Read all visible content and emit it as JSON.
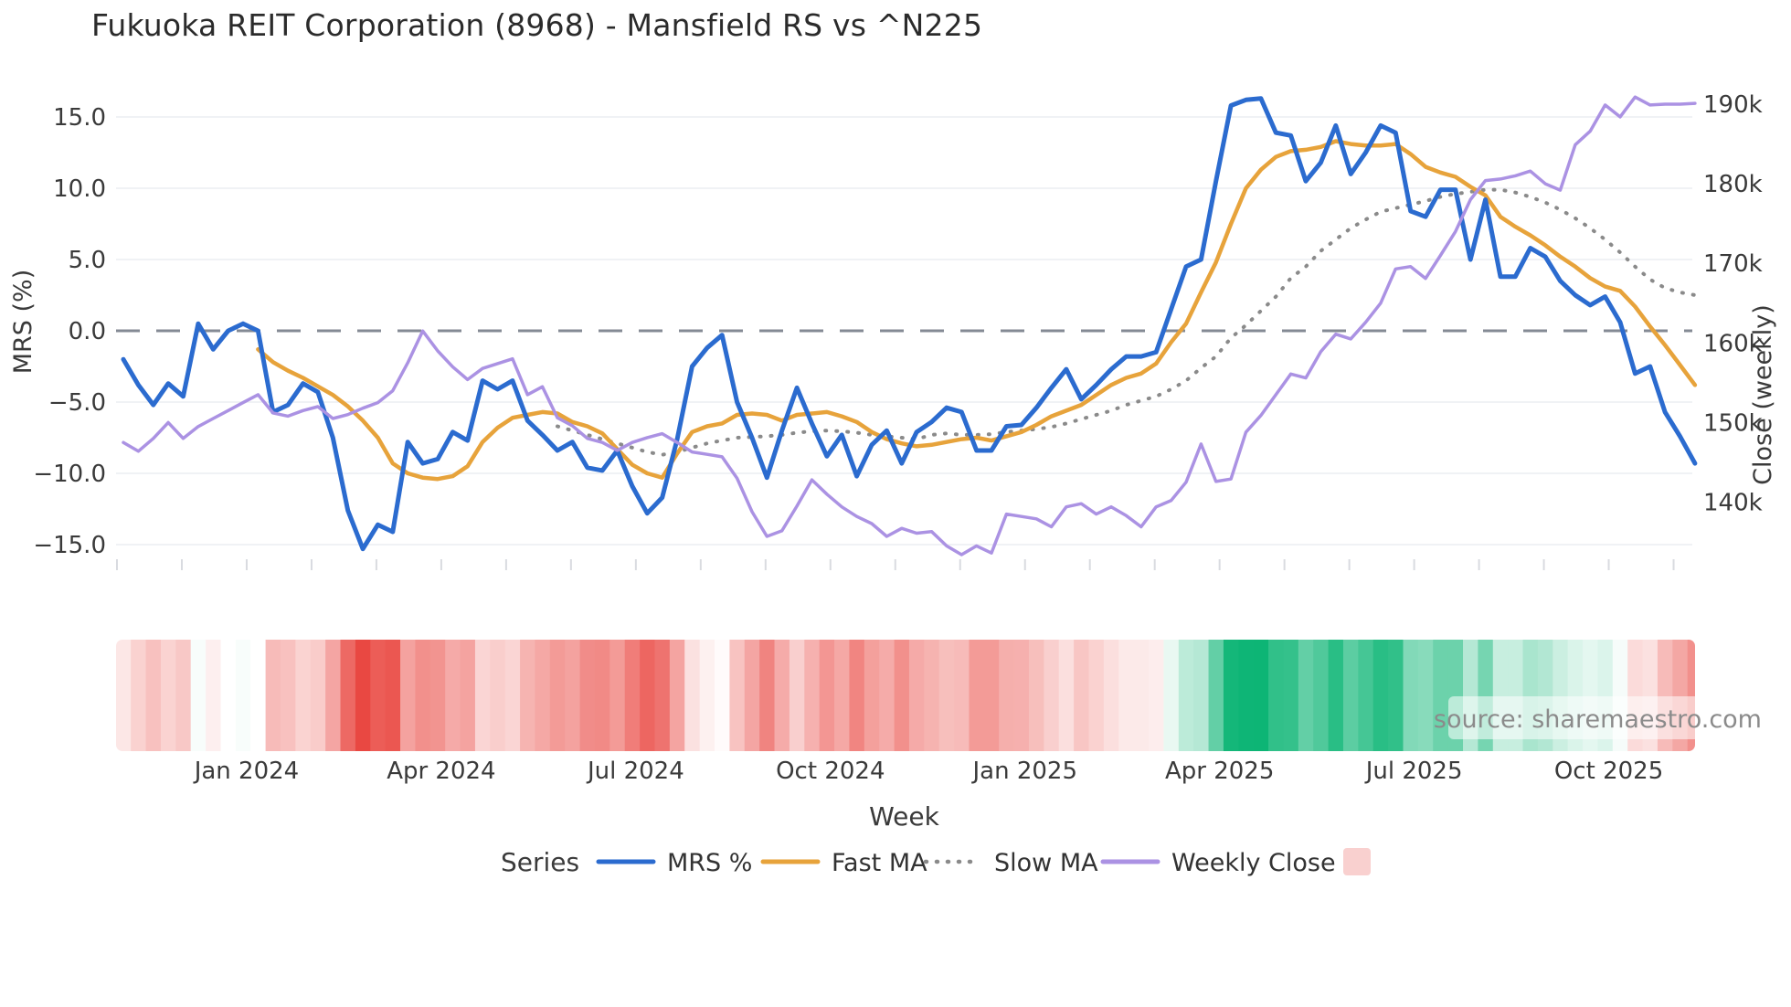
{
  "chart_data": {
    "type": "line",
    "title": "Fukuoka REIT Corporation (8968) - Mansfield RS vs ^N225",
    "xlabel": "Week",
    "x_tick_labels": [
      "Jan 2024",
      "Apr 2024",
      "Jul 2024",
      "Oct 2024",
      "Jan 2025",
      "Apr 2025",
      "Jul 2025",
      "Oct 2025"
    ],
    "y_left": {
      "label": "MRS (%)",
      "tick_values": [
        15,
        10,
        5,
        0,
        -5,
        -10,
        -15
      ],
      "tick_labels": [
        "15.0",
        "10.0",
        "5.0",
        "0.0",
        "−5.0",
        "−10.0",
        "−15.0"
      ]
    },
    "y_right": {
      "label": "Close (weekly)",
      "tick_values": [
        190,
        180,
        170,
        160,
        150,
        140
      ],
      "tick_labels": [
        "190k",
        "180k",
        "170k",
        "160k",
        "150k",
        "140k"
      ]
    },
    "zero_line_value": 0,
    "series": [
      {
        "name": "MRS %",
        "axis": "left",
        "style": "solid",
        "color": "#2b6bcf",
        "width": 5,
        "values": [
          -2.0,
          -3.8,
          -5.2,
          -3.7,
          -4.6,
          0.5,
          -1.3,
          0.0,
          0.5,
          0.0,
          -5.7,
          -5.2,
          -3.7,
          -4.3,
          -7.5,
          -12.6,
          -15.3,
          -13.6,
          -14.1,
          -7.8,
          -9.3,
          -9.0,
          -7.1,
          -7.7,
          -3.5,
          -4.1,
          -3.5,
          -6.3,
          -7.3,
          -8.4,
          -7.8,
          -9.6,
          -9.8,
          -8.4,
          -10.9,
          -12.8,
          -11.7,
          -7.6,
          -2.5,
          -1.2,
          -0.3,
          -5.0,
          -7.5,
          -10.3,
          -7.0,
          -4.0,
          -6.5,
          -8.8,
          -7.3,
          -10.2,
          -8.0,
          -7.0,
          -9.3,
          -7.1,
          -6.4,
          -5.4,
          -5.7,
          -8.4,
          -8.4,
          -6.7,
          -6.6,
          -5.4,
          -4.0,
          -2.7,
          -4.8,
          -3.8,
          -2.7,
          -1.8,
          -1.8,
          -1.5,
          1.5,
          4.5,
          5.0,
          10.5,
          15.8,
          16.2,
          16.3,
          13.9,
          13.7,
          10.5,
          11.8,
          14.4,
          11.0,
          12.5,
          14.4,
          13.9,
          8.4,
          8.0,
          9.9,
          9.9,
          5.0,
          9.2,
          3.8,
          3.8,
          5.8,
          5.2,
          3.5,
          2.5,
          1.8,
          2.4,
          0.6,
          -3.0,
          -2.5,
          -5.7,
          -7.4,
          -9.3
        ]
      },
      {
        "name": "Fast MA",
        "axis": "left",
        "style": "solid",
        "color": "#e7a33b",
        "width": 4.5,
        "values": [
          null,
          null,
          null,
          null,
          null,
          null,
          null,
          null,
          null,
          -1.3,
          -2.2,
          -2.8,
          -3.3,
          -3.9,
          -4.5,
          -5.3,
          -6.3,
          -7.5,
          -9.3,
          -10.0,
          -10.3,
          -10.4,
          -10.2,
          -9.5,
          -7.8,
          -6.8,
          -6.1,
          -5.9,
          -5.7,
          -5.8,
          -6.4,
          -6.7,
          -7.2,
          -8.3,
          -9.4,
          -10.0,
          -10.3,
          -8.6,
          -7.1,
          -6.7,
          -6.5,
          -5.9,
          -5.8,
          -5.9,
          -6.3,
          -5.9,
          -5.8,
          -5.7,
          -6.0,
          -6.4,
          -7.1,
          -7.6,
          -7.9,
          -8.1,
          -8.0,
          -7.8,
          -7.6,
          -7.5,
          -7.7,
          -7.4,
          -7.1,
          -6.6,
          -6.0,
          -5.6,
          -5.2,
          -4.5,
          -3.8,
          -3.3,
          -3.0,
          -2.3,
          -0.8,
          0.5,
          2.7,
          4.8,
          7.5,
          10.0,
          11.3,
          12.2,
          12.6,
          12.7,
          12.9,
          13.3,
          13.1,
          13.0,
          13.0,
          13.1,
          12.4,
          11.5,
          11.1,
          10.8,
          10.1,
          9.5,
          8.0,
          7.3,
          6.7,
          6.0,
          5.2,
          4.5,
          3.7,
          3.1,
          2.8,
          1.7,
          0.3,
          -1.0,
          -2.4,
          -3.8
        ]
      },
      {
        "name": "Slow MA",
        "axis": "left",
        "style": "dotted",
        "color": "#8a8a8a",
        "width": 4,
        "values": [
          null,
          null,
          null,
          null,
          null,
          null,
          null,
          null,
          null,
          null,
          null,
          null,
          null,
          null,
          null,
          null,
          null,
          null,
          null,
          null,
          null,
          null,
          null,
          null,
          null,
          null,
          null,
          null,
          null,
          -6.7,
          -7.0,
          -7.3,
          -7.6,
          -7.9,
          -8.2,
          -8.5,
          -8.7,
          -8.5,
          -8.2,
          -7.9,
          -7.7,
          -7.5,
          -7.45,
          -7.4,
          -7.3,
          -7.15,
          -7.05,
          -7.0,
          -7.05,
          -7.15,
          -7.3,
          -7.4,
          -7.5,
          -7.6,
          -7.3,
          -7.2,
          -7.3,
          -7.3,
          -7.25,
          -7.1,
          -7.0,
          -6.9,
          -6.75,
          -6.5,
          -6.2,
          -5.9,
          -5.6,
          -5.2,
          -4.9,
          -4.6,
          -4.1,
          -3.5,
          -2.6,
          -1.8,
          -0.5,
          0.4,
          1.4,
          2.4,
          3.7,
          4.5,
          5.6,
          6.4,
          7.2,
          7.8,
          8.35,
          8.6,
          8.85,
          9.1,
          9.4,
          9.6,
          9.75,
          9.9,
          9.9,
          9.7,
          9.4,
          9.0,
          8.5,
          7.9,
          7.2,
          6.4,
          5.5,
          4.5,
          3.6,
          3.0,
          2.7,
          2.5
        ]
      },
      {
        "name": "Weekly Close",
        "axis": "right",
        "style": "solid",
        "color": "#ab92e3",
        "width": 3.5,
        "values": [
          147.5,
          146.4,
          148.0,
          150.0,
          148.0,
          149.5,
          150.5,
          151.5,
          152.5,
          153.5,
          151.2,
          150.8,
          151.5,
          152.0,
          150.5,
          151.0,
          151.8,
          152.5,
          154.0,
          157.5,
          161.5,
          159.0,
          157.0,
          155.4,
          156.8,
          157.4,
          158.0,
          153.5,
          154.5,
          150.6,
          149.6,
          148.0,
          147.5,
          146.5,
          147.5,
          148.1,
          148.6,
          147.5,
          146.3,
          146.0,
          145.7,
          143.0,
          138.8,
          135.7,
          136.4,
          139.5,
          142.8,
          141.0,
          139.4,
          138.2,
          137.3,
          135.7,
          136.7,
          136.1,
          136.3,
          134.5,
          133.4,
          134.5,
          133.6,
          138.5,
          138.2,
          137.9,
          136.9,
          139.4,
          139.8,
          138.5,
          139.4,
          138.3,
          136.9,
          139.4,
          140.2,
          142.5,
          147.3,
          142.6,
          142.9,
          148.8,
          150.9,
          153.5,
          156.1,
          155.6,
          158.9,
          161.1,
          160.5,
          162.6,
          165.0,
          169.3,
          169.6,
          168.1,
          171.0,
          174.0,
          178.0,
          180.4,
          180.6,
          181.0,
          181.6,
          180.0,
          179.2,
          184.9,
          186.6,
          189.9,
          188.4,
          190.9,
          189.9,
          190.0,
          190.0,
          190.1
        ]
      }
    ],
    "heatmap": {
      "description": "weekly cells colored by MRS % sign and magnitude",
      "positive_color": "#0db575",
      "negative_color": "#e94640",
      "neutral_color": "#ffffff"
    },
    "legend": {
      "title": "Series",
      "items": [
        {
          "label": "MRS %",
          "swatch": "line",
          "color": "#2b6bcf"
        },
        {
          "label": "Fast MA",
          "swatch": "line",
          "color": "#e7a33b"
        },
        {
          "label": "Slow MA",
          "swatch": "dotted",
          "color": "#8a8a8a"
        },
        {
          "label": "Weekly Close",
          "swatch": "line",
          "color": "#ab92e3"
        },
        {
          "label": "",
          "swatch": "square",
          "color": "#f9d0cf"
        }
      ]
    },
    "source": "source: sharemaestro.com"
  }
}
